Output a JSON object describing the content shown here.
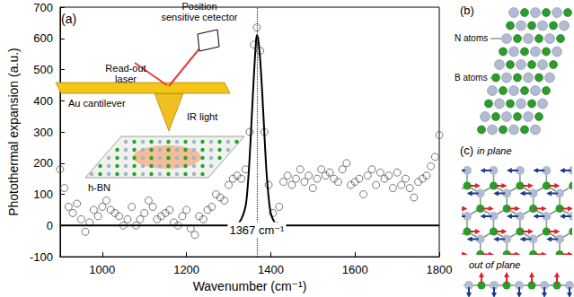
{
  "chart_data": {
    "type": "scatter",
    "panel": "(a)",
    "xlabel": "Wavenumber (cm⁻¹)",
    "ylabel": "Photothermal expansion (a.u.)",
    "xlim": [
      900,
      1800
    ],
    "xticks": [
      1000,
      1200,
      1400,
      1600,
      1800
    ],
    "ylim": [
      -100,
      700
    ],
    "yticks": [
      -100,
      0,
      100,
      200,
      300,
      400,
      500,
      600,
      700
    ],
    "grid": false,
    "series": [
      {
        "type": "scatter",
        "marker": "open_circle",
        "color": "#555555",
        "x": [
          900,
          910,
          920,
          930,
          940,
          950,
          960,
          970,
          980,
          990,
          1000,
          1010,
          1020,
          1030,
          1040,
          1050,
          1060,
          1070,
          1080,
          1090,
          1100,
          1110,
          1120,
          1130,
          1140,
          1150,
          1160,
          1170,
          1180,
          1190,
          1200,
          1210,
          1220,
          1230,
          1240,
          1250,
          1260,
          1270,
          1280,
          1290,
          1300,
          1310,
          1320,
          1330,
          1340,
          1350,
          1360,
          1367,
          1375,
          1385,
          1395,
          1405,
          1415,
          1420,
          1430,
          1440,
          1450,
          1460,
          1470,
          1480,
          1490,
          1500,
          1510,
          1520,
          1530,
          1540,
          1550,
          1560,
          1570,
          1580,
          1590,
          1600,
          1610,
          1620,
          1630,
          1640,
          1650,
          1660,
          1670,
          1680,
          1690,
          1700,
          1710,
          1720,
          1730,
          1740,
          1750,
          1760,
          1770,
          1780,
          1790,
          1800
        ],
        "values": [
          180,
          120,
          60,
          40,
          70,
          20,
          -20,
          10,
          50,
          30,
          60,
          80,
          50,
          40,
          30,
          0,
          20,
          60,
          0,
          20,
          40,
          80,
          60,
          20,
          30,
          40,
          50,
          10,
          0,
          30,
          50,
          -10,
          -30,
          30,
          20,
          50,
          60,
          100,
          90,
          80,
          130,
          150,
          160,
          150,
          180,
          300,
          580,
          635,
          560,
          300,
          130,
          40,
          0,
          60,
          140,
          160,
          130,
          150,
          180,
          140,
          160,
          120,
          150,
          180,
          160,
          170,
          150,
          140,
          180,
          200,
          130,
          140,
          150,
          100,
          160,
          180,
          130,
          170,
          150,
          160,
          120,
          170,
          130,
          150,
          120,
          90,
          140,
          150,
          160,
          190,
          220,
          290
        ]
      },
      {
        "type": "line",
        "line_style": "solid",
        "color": "#000000",
        "x": [
          900,
          1300,
          1320,
          1330,
          1340,
          1345,
          1350,
          1355,
          1360,
          1365,
          1367,
          1370,
          1375,
          1380,
          1385,
          1390,
          1395,
          1400,
          1410,
          1420,
          1800
        ],
        "values": [
          0,
          0,
          5,
          20,
          60,
          120,
          220,
          350,
          480,
          590,
          610,
          600,
          530,
          420,
          290,
          170,
          90,
          40,
          8,
          0,
          0
        ]
      }
    ],
    "annotations": [
      {
        "text": "1367 cm⁻¹",
        "x": 1367,
        "line_style": "dotted"
      }
    ],
    "inset_labels": {
      "laser": "Read-out laser",
      "detector": "Position sensitive cetector",
      "cantilever": "Au cantilever",
      "light": "IR light",
      "sample": "h-BN"
    }
  },
  "panel_b": {
    "label": "(b)",
    "n_label": "N atoms",
    "b_label": "B atoms"
  },
  "panel_c": {
    "label": "(c)",
    "top_title": "in plane",
    "bottom_title": "out of plane"
  }
}
